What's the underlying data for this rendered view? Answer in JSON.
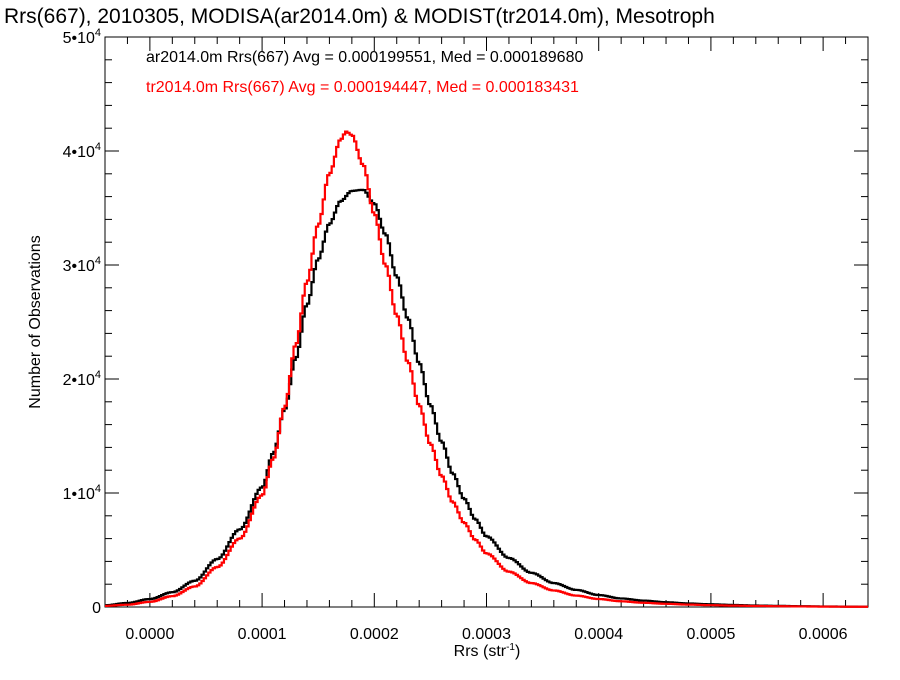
{
  "chart_data": {
    "type": "step-histogram",
    "title": "Rrs(667), 2010305, MODISA(ar2014.0m) & MODIST(tr2014.0m), Mesotroph",
    "xlabel": {
      "base": "Rrs (str",
      "exponent": "-1",
      "close": ")"
    },
    "ylabel": "Number of Observations",
    "xlim": [
      -4e-05,
      0.00064
    ],
    "ylim": [
      0,
      50000
    ],
    "grid": false,
    "legend_position": "top-left",
    "x_ticks": [
      {
        "value": 0.0,
        "label": "0.0000"
      },
      {
        "value": 0.0001,
        "label": "0.0001"
      },
      {
        "value": 0.0002,
        "label": "0.0002"
      },
      {
        "value": 0.0003,
        "label": "0.0003"
      },
      {
        "value": 0.0004,
        "label": "0.0004"
      },
      {
        "value": 0.0005,
        "label": "0.0005"
      },
      {
        "value": 0.0006,
        "label": "0.0006"
      }
    ],
    "y_ticks": [
      {
        "value": 0,
        "mantissa": "0",
        "exponent": ""
      },
      {
        "value": 10000,
        "mantissa": "1•10",
        "exponent": "4"
      },
      {
        "value": 20000,
        "mantissa": "2•10",
        "exponent": "4"
      },
      {
        "value": 30000,
        "mantissa": "3•10",
        "exponent": "4"
      },
      {
        "value": 40000,
        "mantissa": "4•10",
        "exponent": "4"
      },
      {
        "value": 50000,
        "mantissa": "5•10",
        "exponent": "4"
      }
    ],
    "series": [
      {
        "name": "ar2014.0m",
        "legend": "ar2014.0m Rrs(667) Avg = 0.000199551, Med = 0.000189680",
        "color": "#000000",
        "points": [
          [
            -4e-05,
            150
          ],
          [
            -2e-05,
            350
          ],
          [
            0.0,
            700
          ],
          [
            2e-05,
            1300
          ],
          [
            4e-05,
            2300
          ],
          [
            6e-05,
            4200
          ],
          [
            8e-05,
            6800
          ],
          [
            0.0001,
            10500
          ],
          [
            0.00011,
            13500
          ],
          [
            0.00012,
            17300
          ],
          [
            0.00013,
            21800
          ],
          [
            0.00014,
            26500
          ],
          [
            0.00015,
            30500
          ],
          [
            0.00016,
            33600
          ],
          [
            0.00017,
            35600
          ],
          [
            0.00018,
            36500
          ],
          [
            0.00019,
            36600
          ],
          [
            0.0002,
            35400
          ],
          [
            0.00021,
            32700
          ],
          [
            0.00022,
            29000
          ],
          [
            0.00023,
            25300
          ],
          [
            0.00024,
            21400
          ],
          [
            0.00025,
            17700
          ],
          [
            0.00026,
            14500
          ],
          [
            0.00027,
            11700
          ],
          [
            0.00028,
            9500
          ],
          [
            0.00029,
            7700
          ],
          [
            0.0003,
            6200
          ],
          [
            0.00032,
            4300
          ],
          [
            0.00034,
            3000
          ],
          [
            0.00036,
            2100
          ],
          [
            0.00038,
            1500
          ],
          [
            0.0004,
            1050
          ],
          [
            0.00042,
            750
          ],
          [
            0.00044,
            560
          ],
          [
            0.00046,
            420
          ],
          [
            0.00048,
            310
          ],
          [
            0.0005,
            240
          ],
          [
            0.00052,
            180
          ],
          [
            0.00054,
            130
          ],
          [
            0.00056,
            100
          ],
          [
            0.00058,
            70
          ],
          [
            0.0006,
            50
          ],
          [
            0.00062,
            35
          ],
          [
            0.00064,
            25
          ]
        ]
      },
      {
        "name": "tr2014.0m",
        "legend": "tr2014.0m Rrs(667) Avg = 0.000194447, Med = 0.000183431",
        "color": "#ff0000",
        "points": [
          [
            -4e-05,
            100
          ],
          [
            -2e-05,
            200
          ],
          [
            0.0,
            450
          ],
          [
            2e-05,
            950
          ],
          [
            4e-05,
            1800
          ],
          [
            6e-05,
            3500
          ],
          [
            8e-05,
            6000
          ],
          [
            0.0001,
            9800
          ],
          [
            0.00011,
            13000
          ],
          [
            0.00012,
            17500
          ],
          [
            0.00013,
            23000
          ],
          [
            0.00014,
            28500
          ],
          [
            0.00015,
            33500
          ],
          [
            0.00016,
            38000
          ],
          [
            0.00017,
            41000
          ],
          [
            0.000175,
            41700
          ],
          [
            0.00018,
            41400
          ],
          [
            0.00019,
            38800
          ],
          [
            0.0002,
            34500
          ],
          [
            0.00021,
            30000
          ],
          [
            0.00022,
            25600
          ],
          [
            0.00023,
            21500
          ],
          [
            0.00024,
            17700
          ],
          [
            0.00025,
            14300
          ],
          [
            0.00026,
            11500
          ],
          [
            0.00027,
            9200
          ],
          [
            0.00028,
            7400
          ],
          [
            0.00029,
            5900
          ],
          [
            0.0003,
            4700
          ],
          [
            0.00032,
            3100
          ],
          [
            0.00034,
            2100
          ],
          [
            0.00036,
            1450
          ],
          [
            0.00038,
            1000
          ],
          [
            0.0004,
            700
          ],
          [
            0.00042,
            500
          ],
          [
            0.00044,
            370
          ],
          [
            0.00046,
            280
          ],
          [
            0.00048,
            210
          ],
          [
            0.0005,
            160
          ],
          [
            0.00052,
            120
          ],
          [
            0.00054,
            90
          ],
          [
            0.00056,
            70
          ],
          [
            0.00058,
            50
          ],
          [
            0.0006,
            35
          ],
          [
            0.00062,
            25
          ],
          [
            0.00064,
            20
          ]
        ]
      }
    ]
  }
}
